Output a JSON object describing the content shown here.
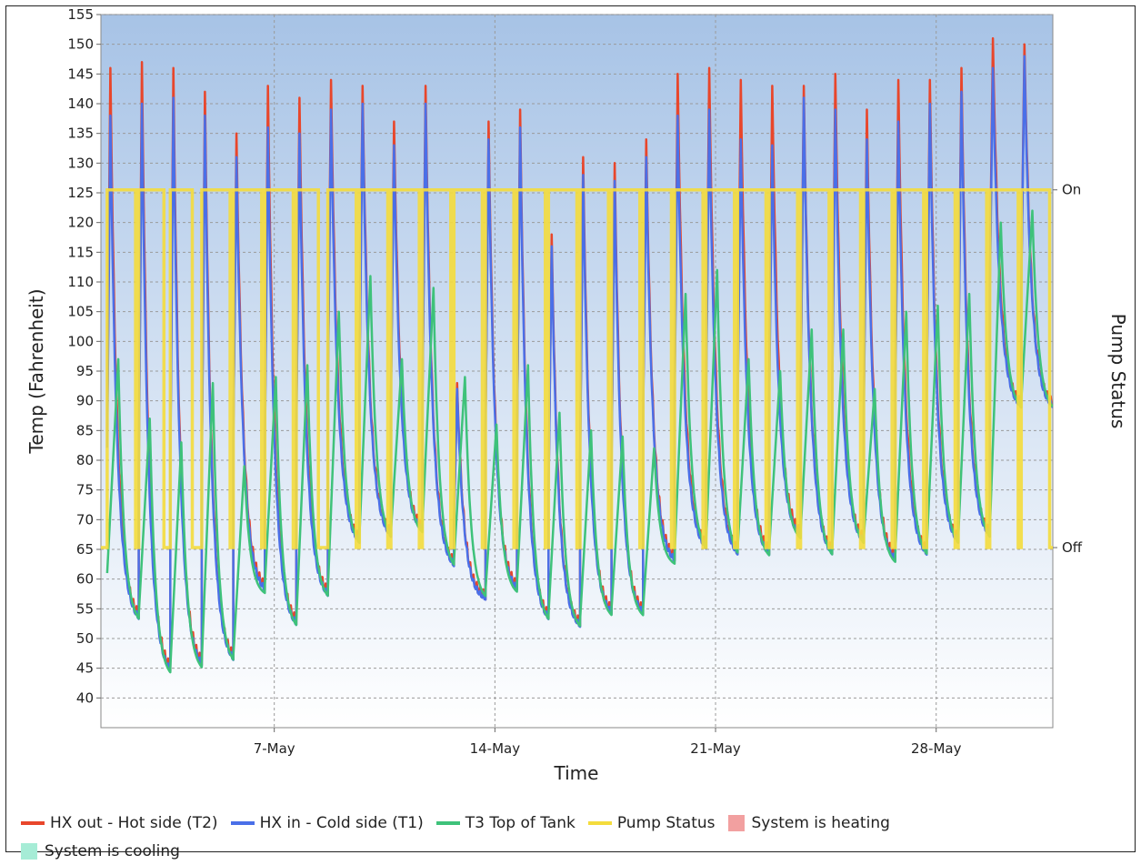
{
  "chart_data": {
    "type": "line",
    "xlabel": "Time",
    "ylabel": "Temp (Fahrenheit)",
    "y2label": "Pump Status",
    "ylim": [
      35,
      155
    ],
    "yticks": [
      40,
      45,
      50,
      55,
      60,
      65,
      70,
      75,
      80,
      85,
      90,
      95,
      100,
      105,
      110,
      115,
      120,
      125,
      130,
      135,
      140,
      145,
      150,
      155
    ],
    "xlim_days": [
      1.5,
      31.7
    ],
    "xticks": [
      {
        "day": 7,
        "label": "7-May"
      },
      {
        "day": 14,
        "label": "14-May"
      },
      {
        "day": 21,
        "label": "21-May"
      },
      {
        "day": 28,
        "label": "28-May"
      }
    ],
    "y2ticks": [
      {
        "value": 125.5,
        "label": "On"
      },
      {
        "value": 65.3,
        "label": "Off"
      }
    ],
    "grid": true,
    "legend_position": "bottom",
    "cycles": [
      {
        "start": 1.7,
        "end": 2.6,
        "t2": 146,
        "t1": 138,
        "t3": 97,
        "min": 59
      },
      {
        "start": 2.7,
        "end": 3.5,
        "t2": 147,
        "t1": 140,
        "t3": 87,
        "min": 52
      },
      {
        "start": 3.7,
        "end": 4.4,
        "t2": 146,
        "t1": 141,
        "t3": 83,
        "min": 43
      },
      {
        "start": 4.7,
        "end": 5.6,
        "t2": 142,
        "t1": 138,
        "t3": 93,
        "min": 44
      },
      {
        "start": 5.7,
        "end": 6.6,
        "t2": 135,
        "t1": 131,
        "t3": 79,
        "min": 45
      },
      {
        "start": 6.7,
        "end": 7.6,
        "t2": 143,
        "t1": 136,
        "t3": 94,
        "min": 57
      },
      {
        "start": 7.7,
        "end": 8.4,
        "t2": 141,
        "t1": 135,
        "t3": 96,
        "min": 51
      },
      {
        "start": 8.7,
        "end": 9.6,
        "t2": 144,
        "t1": 139,
        "t3": 105,
        "min": 56
      },
      {
        "start": 9.7,
        "end": 10.6,
        "t2": 143,
        "t1": 140,
        "t3": 111,
        "min": 65
      },
      {
        "start": 10.7,
        "end": 11.6,
        "t2": 137,
        "t1": 133,
        "t3": 97,
        "min": 66
      },
      {
        "start": 11.7,
        "end": 12.6,
        "t2": 143,
        "t1": 140,
        "t3": 109,
        "min": 67
      },
      {
        "start": 12.7,
        "end": 13.6,
        "t2": 93,
        "t1": 92,
        "t3": 94,
        "min": 61
      },
      {
        "start": 13.7,
        "end": 14.6,
        "t2": 137,
        "t1": 134,
        "t3": 86,
        "min": 56
      },
      {
        "start": 14.7,
        "end": 15.6,
        "t2": 139,
        "t1": 136,
        "t3": 96,
        "min": 57
      },
      {
        "start": 15.7,
        "end": 16.6,
        "t2": 118,
        "t1": 116,
        "t3": 88,
        "min": 52
      },
      {
        "start": 16.7,
        "end": 17.6,
        "t2": 131,
        "t1": 128,
        "t3": 85,
        "min": 51
      },
      {
        "start": 17.7,
        "end": 18.6,
        "t2": 130,
        "t1": 127,
        "t3": 84,
        "min": 53
      },
      {
        "start": 18.7,
        "end": 19.6,
        "t2": 134,
        "t1": 131,
        "t3": 82,
        "min": 53
      },
      {
        "start": 19.7,
        "end": 20.6,
        "t2": 145,
        "t1": 138,
        "t3": 108,
        "min": 62
      },
      {
        "start": 20.7,
        "end": 21.6,
        "t2": 146,
        "t1": 139,
        "t3": 112,
        "min": 64
      },
      {
        "start": 21.7,
        "end": 22.6,
        "t2": 144,
        "t1": 134,
        "t3": 97,
        "min": 63
      },
      {
        "start": 22.7,
        "end": 23.6,
        "t2": 143,
        "t1": 133,
        "t3": 95,
        "min": 63
      },
      {
        "start": 23.7,
        "end": 24.6,
        "t2": 143,
        "t1": 141,
        "t3": 102,
        "min": 66
      },
      {
        "start": 24.7,
        "end": 25.6,
        "t2": 145,
        "t1": 139,
        "t3": 102,
        "min": 63
      },
      {
        "start": 25.7,
        "end": 26.6,
        "t2": 139,
        "t1": 134,
        "t3": 92,
        "min": 65
      },
      {
        "start": 26.7,
        "end": 27.6,
        "t2": 144,
        "t1": 137,
        "t3": 105,
        "min": 62
      },
      {
        "start": 27.7,
        "end": 28.6,
        "t2": 144,
        "t1": 140,
        "t3": 106,
        "min": 63
      },
      {
        "start": 28.7,
        "end": 29.6,
        "t2": 146,
        "t1": 142,
        "t3": 108,
        "min": 65
      },
      {
        "start": 29.7,
        "end": 30.6,
        "t2": 151,
        "t1": 146,
        "t3": 120,
        "min": 66
      },
      {
        "start": 30.7,
        "end": 31.6,
        "t2": 150,
        "t1": 148,
        "t3": 122,
        "min": 88
      }
    ],
    "series": [
      {
        "name": "HX out - Hot side (T2)",
        "color": "#e8462b"
      },
      {
        "name": "HX in - Cold side (T1)",
        "color": "#4a6fe8"
      },
      {
        "name": "T3 Top of Tank",
        "color": "#3ec27a"
      },
      {
        "name": "Pump Status",
        "color": "#f4dc3c"
      }
    ],
    "regions": [
      {
        "name": "System is heating",
        "color": "#f2a0a0"
      },
      {
        "name": "System is cooling",
        "color": "#a6ecd6"
      }
    ]
  },
  "legend": {
    "row1": [
      {
        "label": "HX out - Hot side (T2)",
        "color": "#e8462b"
      },
      {
        "label": "HX in - Cold side (T1)",
        "color": "#4a6fe8"
      },
      {
        "label": "T3 Top of Tank",
        "color": "#3ec27a"
      },
      {
        "label": "Pump Status",
        "color": "#f4dc3c"
      }
    ],
    "heating_label": "System is heating",
    "cooling_label": "System is cooling"
  }
}
